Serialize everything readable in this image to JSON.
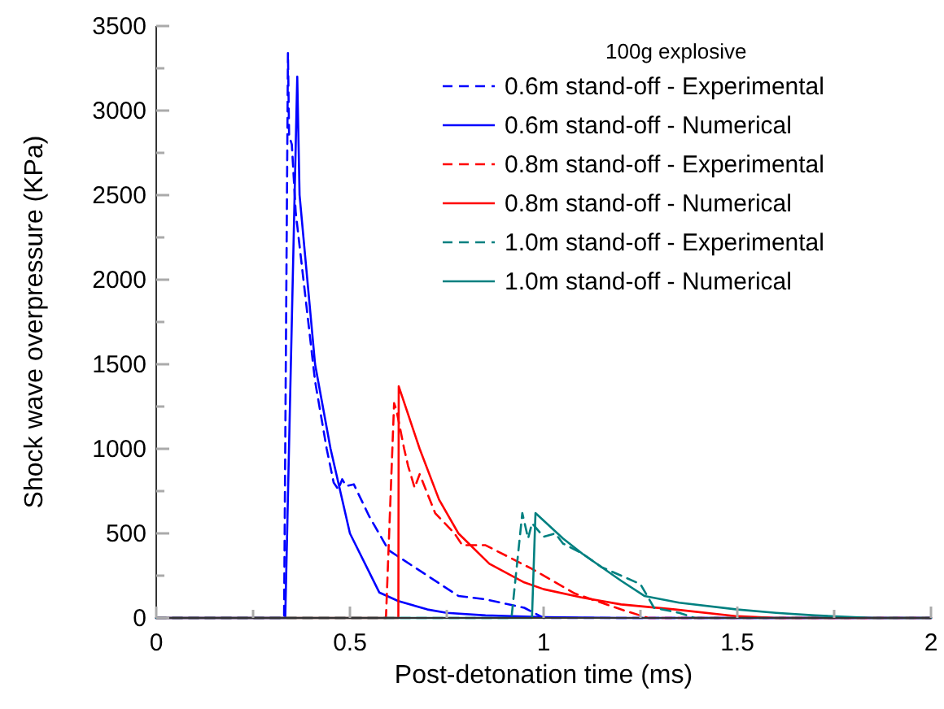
{
  "chart_data": {
    "type": "line",
    "xlabel": "Post-detonation time (ms)",
    "ylabel": "Shock wave overpressure (KPa)",
    "legend_title": "100g explosive",
    "legend": "top right",
    "grid": false,
    "marker": "none",
    "xlim": [
      0,
      2
    ],
    "ylim": [
      0,
      3500
    ],
    "xticks": [
      0,
      {
        "value": 0.25,
        "label": null
      },
      0.5,
      {
        "value": 0.75,
        "label": null
      },
      1,
      {
        "value": 1.25,
        "label": null
      },
      1.5,
      {
        "value": 1.75,
        "label": null
      },
      2
    ],
    "yticks": [
      0,
      {
        "value": 250,
        "label": null
      },
      500,
      {
        "value": 750,
        "label": null
      },
      1000,
      {
        "value": 1250,
        "label": null
      },
      1500,
      {
        "value": 1750,
        "label": null
      },
      2000,
      {
        "value": 2250,
        "label": null
      },
      2500,
      {
        "value": 2750,
        "label": null
      },
      3000,
      {
        "value": 3250,
        "label": null
      },
      3500
    ],
    "series": [
      {
        "name": "0.6m stand-off - Experimental",
        "color": "#0000ff",
        "line_style": "dashed",
        "x": [
          0,
          0.33,
          0.34,
          0.343,
          0.35,
          0.36,
          0.38,
          0.41,
          0.44,
          0.458,
          0.47,
          0.48,
          0.49,
          0.51,
          0.55,
          0.6,
          0.7,
          0.78,
          0.85,
          0.95,
          1.0,
          2
        ],
        "values": [
          0,
          0,
          3340,
          2850,
          2800,
          2400,
          2000,
          1400,
          1000,
          800,
          760,
          820,
          780,
          790,
          600,
          400,
          250,
          130,
          110,
          60,
          0,
          0
        ]
      },
      {
        "name": "0.6m stand-off - Numerical",
        "color": "#0000ff",
        "line_style": "solid",
        "x": [
          0,
          0.333,
          0.364,
          0.37,
          0.39,
          0.41,
          0.45,
          0.5,
          0.55,
          0.576,
          0.625,
          0.7,
          0.75,
          0.85,
          1.0,
          1.2,
          2
        ],
        "values": [
          0,
          0,
          3200,
          2500,
          2000,
          1500,
          1000,
          500,
          270,
          150,
          100,
          50,
          30,
          15,
          5,
          0,
          0
        ]
      },
      {
        "name": "0.8m stand-off - Experimental",
        "color": "#ff0000",
        "line_style": "dashed",
        "x": [
          0,
          0.593,
          0.614,
          0.62,
          0.64,
          0.65,
          0.667,
          0.68,
          0.72,
          0.77,
          0.79,
          0.85,
          0.97,
          1.08,
          1.2,
          1.27,
          2
        ],
        "values": [
          0,
          0,
          1270,
          1230,
          1000,
          900,
          770,
          850,
          620,
          500,
          430,
          430,
          290,
          145,
          50,
          0,
          0
        ]
      },
      {
        "name": "0.8m stand-off - Numerical",
        "color": "#ff0000",
        "line_style": "solid",
        "x": [
          0,
          0.625,
          0.626,
          0.68,
          0.73,
          0.78,
          0.86,
          0.95,
          1.0,
          1.1,
          1.2,
          1.34,
          1.5,
          1.6,
          2
        ],
        "values": [
          0,
          0,
          1370,
          1000,
          700,
          500,
          320,
          210,
          170,
          120,
          80,
          50,
          10,
          0,
          0
        ]
      },
      {
        "name": "1.0m stand-off - Experimental",
        "color": "#008080",
        "line_style": "dashed",
        "x": [
          0,
          0.917,
          0.945,
          0.96,
          0.97,
          1.0,
          1.03,
          1.05,
          1.1,
          1.15,
          1.25,
          1.285,
          1.35,
          1.39,
          2
        ],
        "values": [
          0,
          0,
          620,
          470,
          560,
          480,
          500,
          440,
          380,
          300,
          200,
          60,
          30,
          0,
          0
        ]
      },
      {
        "name": "1.0m stand-off - Numerical",
        "color": "#008080",
        "line_style": "solid",
        "x": [
          0,
          0.97,
          0.979,
          1.05,
          1.1,
          1.2,
          1.26,
          1.35,
          1.5,
          1.6,
          1.7,
          1.8,
          1.85,
          2
        ],
        "values": [
          0,
          0,
          620,
          470,
          380,
          220,
          130,
          90,
          50,
          30,
          15,
          5,
          0,
          0
        ]
      }
    ]
  }
}
